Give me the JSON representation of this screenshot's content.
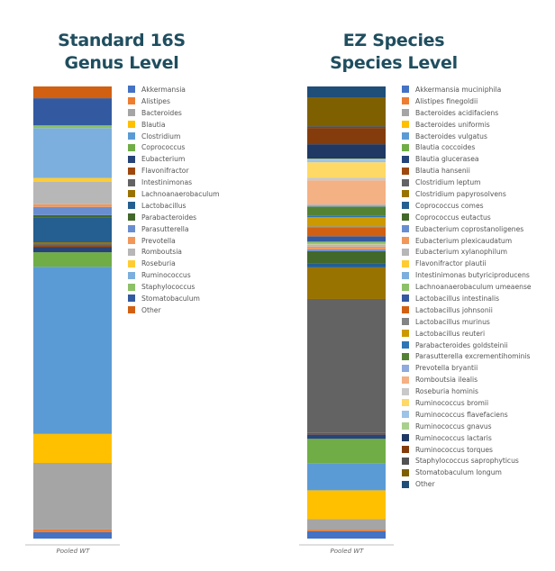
{
  "chart_data": [
    {
      "type": "bar",
      "stacked": true,
      "title": "Standard 16S Genus Level",
      "title_lines": [
        "Standard 16S",
        "Genus Level"
      ],
      "categories": [
        "Pooled WT"
      ],
      "ylim": [
        0,
        100
      ],
      "unit": "percent",
      "legend_position": "right",
      "series": [
        {
          "name": "Akkermansia",
          "values": [
            1.4
          ],
          "color": "#4472c4"
        },
        {
          "name": "Alistipes",
          "values": [
            0.6
          ],
          "color": "#ed7d31"
        },
        {
          "name": "Bacteroides",
          "values": [
            14.7
          ],
          "color": "#a5a5a5"
        },
        {
          "name": "Blautia",
          "values": [
            6.4
          ],
          "color": "#ffc000"
        },
        {
          "name": "Clostridium",
          "values": [
            36.9
          ],
          "color": "#5b9bd5"
        },
        {
          "name": "Coprococcus",
          "values": [
            3.2
          ],
          "color": "#70ad47"
        },
        {
          "name": "Eubacterium",
          "values": [
            1.2
          ],
          "color": "#264478"
        },
        {
          "name": "Flavonifractor",
          "values": [
            0.4
          ],
          "color": "#9e480e"
        },
        {
          "name": "Intestinimonas",
          "values": [
            0.2
          ],
          "color": "#636363"
        },
        {
          "name": "Lachnoanaerobaculum",
          "values": [
            0.4
          ],
          "color": "#997300"
        },
        {
          "name": "Lactobacillus",
          "values": [
            5.4
          ],
          "color": "#255e91"
        },
        {
          "name": "Parabacteroides",
          "values": [
            0.6
          ],
          "color": "#43682b"
        },
        {
          "name": "Parasutterella",
          "values": [
            1.8
          ],
          "color": "#698ed0"
        },
        {
          "name": "Prevotella",
          "values": [
            0.6
          ],
          "color": "#f1975a"
        },
        {
          "name": "Romboutsia",
          "values": [
            5.0
          ],
          "color": "#b7b7b7"
        },
        {
          "name": "Roseburia",
          "values": [
            0.8
          ],
          "color": "#ffcd33"
        },
        {
          "name": "Ruminococcus",
          "values": [
            11.0
          ],
          "color": "#7cafdd"
        },
        {
          "name": "Staphylococcus",
          "values": [
            0.6
          ],
          "color": "#8cc168"
        },
        {
          "name": "Stomatobaculum",
          "values": [
            6.0
          ],
          "color": "#335aa1"
        },
        {
          "name": "Other",
          "values": [
            2.6
          ],
          "color": "#d26012"
        }
      ]
    },
    {
      "type": "bar",
      "stacked": true,
      "title": "EZ Species Species Level",
      "title_lines": [
        "EZ Species",
        "Species Level"
      ],
      "categories": [
        "Pooled WT"
      ],
      "ylim": [
        0,
        100
      ],
      "unit": "percent",
      "legend_position": "right",
      "series": [
        {
          "name": "Akkermansia muciniphila",
          "values": [
            1.6
          ],
          "color": "#4472c4"
        },
        {
          "name": "Alistipes finegoldii",
          "values": [
            0.3
          ],
          "color": "#ed7d31"
        },
        {
          "name": "Bacteroides acidifaciens",
          "values": [
            2.4
          ],
          "color": "#a5a5a5"
        },
        {
          "name": "Bacteroides uniformis",
          "values": [
            6.4
          ],
          "color": "#ffc000"
        },
        {
          "name": "Bacteroides vulgatus",
          "values": [
            6.0
          ],
          "color": "#5b9bd5"
        },
        {
          "name": "Blautia coccoides",
          "values": [
            5.4
          ],
          "color": "#70ad47"
        },
        {
          "name": "Blautia glucerasea",
          "values": [
            1.0
          ],
          "color": "#264478"
        },
        {
          "name": "Blautia hansenii",
          "values": [
            0.3
          ],
          "color": "#9e480e"
        },
        {
          "name": "Clostridium leptum",
          "values": [
            29.7
          ],
          "color": "#636363"
        },
        {
          "name": "Clostridium papyrosolvens",
          "values": [
            7.0
          ],
          "color": "#997300"
        },
        {
          "name": "Coprococcus comes",
          "values": [
            0.8
          ],
          "color": "#255e91"
        },
        {
          "name": "Coprococcus eutactus",
          "values": [
            2.8
          ],
          "color": "#43682b"
        },
        {
          "name": "Eubacterium coprostanoligenes",
          "values": [
            0.4
          ],
          "color": "#698ed0"
        },
        {
          "name": "Eubacterium plexicaudatum",
          "values": [
            0.6
          ],
          "color": "#f1975a"
        },
        {
          "name": "Eubacterium xylanophilum",
          "values": [
            0.4
          ],
          "color": "#b7b7b7"
        },
        {
          "name": "Flavonifractor plautii",
          "values": [
            0.1
          ],
          "color": "#ffcd33"
        },
        {
          "name": "Intestinimonas butyriciproducens",
          "values": [
            0.2
          ],
          "color": "#7cafdd"
        },
        {
          "name": "Lachnoanaerobaculum umeaense",
          "values": [
            0.4
          ],
          "color": "#8cc168"
        },
        {
          "name": "Lactobacillus intestinalis",
          "values": [
            1.2
          ],
          "color": "#335aa1"
        },
        {
          "name": "Lactobacillus johnsonii",
          "values": [
            2.0
          ],
          "color": "#d26012"
        },
        {
          "name": "Lactobacillus murinus",
          "values": [
            0.2
          ],
          "color": "#848484"
        },
        {
          "name": "Lactobacillus reuteri",
          "values": [
            2.0
          ],
          "color": "#cc9a00"
        },
        {
          "name": "Parabacteroides goldsteinii",
          "values": [
            0.4
          ],
          "color": "#2e75b6"
        },
        {
          "name": "Parasutterella excrementihominis",
          "values": [
            2.0
          ],
          "color": "#548235"
        },
        {
          "name": "Prevotella bryantii",
          "values": [
            0.4
          ],
          "color": "#8faadc"
        },
        {
          "name": "Romboutsia ilealis",
          "values": [
            5.4
          ],
          "color": "#f4b183"
        },
        {
          "name": "Roseburia hominis",
          "values": [
            0.6
          ],
          "color": "#c9c9c9"
        },
        {
          "name": "Ruminococcus bromii",
          "values": [
            3.4
          ],
          "color": "#ffd966"
        },
        {
          "name": "Ruminococcus flavefaciens",
          "values": [
            0.6
          ],
          "color": "#9dc3e6"
        },
        {
          "name": "Ruminococcus gnavus",
          "values": [
            0.2
          ],
          "color": "#a9d18e"
        },
        {
          "name": "Ruminococcus lactaris",
          "values": [
            3.2
          ],
          "color": "#1f3864"
        },
        {
          "name": "Ruminococcus torques",
          "values": [
            3.6
          ],
          "color": "#843c0c"
        },
        {
          "name": "Staphylococcus saprophyticus",
          "values": [
            0.4
          ],
          "color": "#525252"
        },
        {
          "name": "Stomatobaculum longum",
          "values": [
            6.4
          ],
          "color": "#7f6000"
        },
        {
          "name": "Other",
          "values": [
            2.4
          ],
          "color": "#1f4e79"
        }
      ]
    }
  ]
}
